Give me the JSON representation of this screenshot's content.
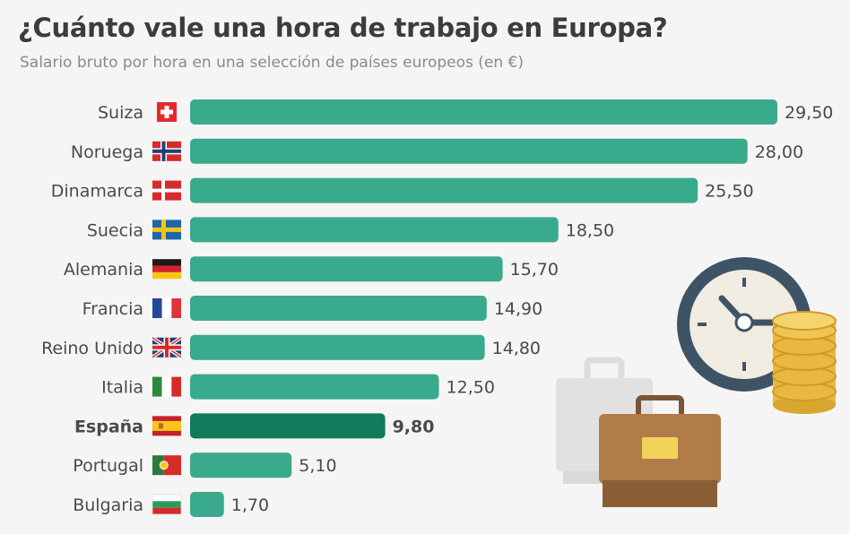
{
  "header": {
    "title": "¿Cuánto vale una hora de trabajo en Europa?",
    "subtitle": "Salario bruto por hora en una selección de países europeos (en €)"
  },
  "colors": {
    "bar": "#3aaa8c",
    "bar_highlight": "#0f7a5c",
    "label": "#4a4a4a",
    "title": "#3c3c3c",
    "subtitle": "#8a8a8a"
  },
  "chart_data": {
    "type": "bar",
    "orientation": "horizontal",
    "categories": [
      "Suiza",
      "Noruega",
      "Dinamarca",
      "Suecia",
      "Alemania",
      "Francia",
      "Reino Unido",
      "Italia",
      "España",
      "Portugal",
      "Bulgaria"
    ],
    "values": [
      29.5,
      28.0,
      25.5,
      18.5,
      15.7,
      14.9,
      14.8,
      12.5,
      9.8,
      5.1,
      1.7
    ],
    "value_labels": [
      "29,50",
      "28,00",
      "25,50",
      "18,50",
      "15,70",
      "14,90",
      "14,80",
      "12,50",
      "9,80",
      "5,10",
      "1,70"
    ],
    "highlight": "España",
    "flags": [
      "switzerland-flag-icon",
      "norway-flag-icon",
      "denmark-flag-icon",
      "sweden-flag-icon",
      "germany-flag-icon",
      "france-flag-icon",
      "uk-flag-icon",
      "italy-flag-icon",
      "spain-flag-icon",
      "portugal-flag-icon",
      "bulgaria-flag-icon"
    ],
    "xlim": [
      0,
      29.5
    ],
    "grid": false,
    "legend": "none"
  },
  "illustration": {
    "icons": [
      "clock-icon",
      "coin-stack-icon",
      "briefcase-icon"
    ]
  }
}
